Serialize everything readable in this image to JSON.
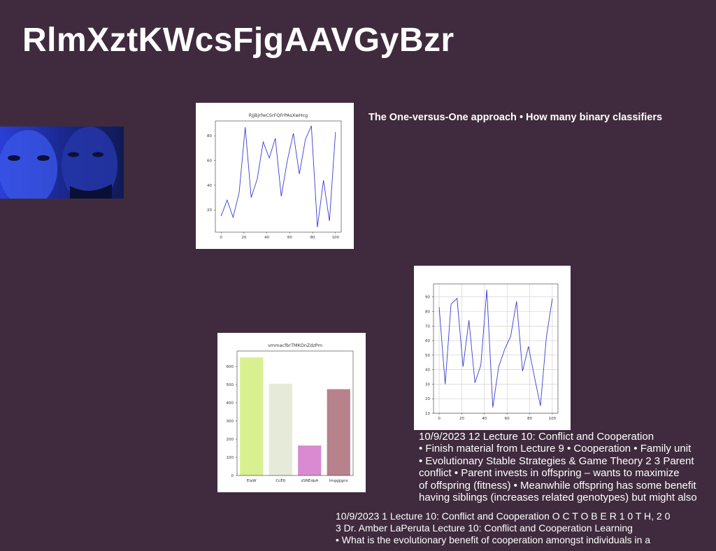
{
  "title": "RlmXztKWcsFjgAAVGyBzr",
  "heading": "The One-versus-One approach • How many binary classifiers",
  "charts": [
    {
      "type": "line",
      "title": "RjjBjrfwCSrFQFrPAsXwHcg",
      "color": "#3b3bd6",
      "grid": false,
      "x": [
        0,
        5.3,
        10.5,
        15.8,
        21.1,
        26.3,
        31.6,
        36.8,
        42.1,
        47.4,
        52.6,
        57.9,
        63.2,
        68.4,
        73.7,
        78.9,
        84.2,
        89.5,
        94.7,
        100
      ],
      "values": [
        15,
        28,
        14,
        34,
        87,
        30,
        45,
        75,
        62,
        78,
        31,
        60,
        82,
        49,
        77,
        88,
        6,
        44,
        11,
        83
      ],
      "xlim": [
        -5,
        105
      ],
      "ylim": [
        2,
        92
      ],
      "xticks": [
        0,
        20,
        40,
        60,
        80,
        100
      ],
      "yticks": [
        20,
        40,
        60,
        80
      ]
    },
    {
      "type": "line",
      "color": "#3b3bd6",
      "grid": true,
      "x": [
        0,
        5.3,
        10.5,
        15.8,
        21.1,
        26.3,
        31.6,
        36.8,
        42.1,
        47.4,
        52.6,
        57.9,
        63.2,
        68.4,
        73.7,
        78.9,
        84.2,
        89.5,
        94.7,
        100
      ],
      "values": [
        83,
        30,
        85,
        89,
        42,
        74,
        31,
        43,
        95,
        14,
        42,
        54,
        63,
        87,
        39,
        56,
        35,
        15,
        62,
        89
      ],
      "xlim": [
        -5,
        105
      ],
      "ylim": [
        10,
        99
      ],
      "xticks": [
        0,
        20,
        40,
        60,
        80,
        100
      ],
      "yticks": [
        10,
        20,
        30,
        40,
        50,
        60,
        70,
        80,
        90
      ]
    },
    {
      "type": "bar",
      "title": "vmmacfbrTMKOnZdzPm",
      "grid": false,
      "categories": [
        "ElaW",
        "CcEfj",
        "zSNEdpA",
        "Imggjjgnz"
      ],
      "values": [
        650,
        505,
        165,
        475
      ],
      "colors": [
        "#d8f08f",
        "#e6ead9",
        "#d98ad0",
        "#b7828c"
      ],
      "ylim": [
        0,
        685
      ],
      "yticks": [
        0,
        100,
        200,
        300,
        400,
        500,
        600
      ]
    }
  ],
  "paragraph1": [
    "10/9/2023 12 Lecture 10: Conflict and Cooperation",
    "• Finish material from Lecture 9 • Cooperation • Family unit",
    "• Evolutionary Stable Strategies & Game Theory 2 3 Parent",
    "conflict • Parent invests in offspring – wants to maximize",
    "of offspring (fitness) • Meanwhile offspring has some benefit",
    "having siblings (increases related genotypes) but might also"
  ],
  "paragraph2": [
    "10/9/2023 1 Lecture 10: Conflict and Cooperation O C T O B E R 1 0 T H, 2 0",
    "3 Dr. Amber LaPeruta Lecture 10: Conflict and Cooperation Learning",
    "• What is the evolutionary benefit of cooperation amongst individuals in a"
  ]
}
